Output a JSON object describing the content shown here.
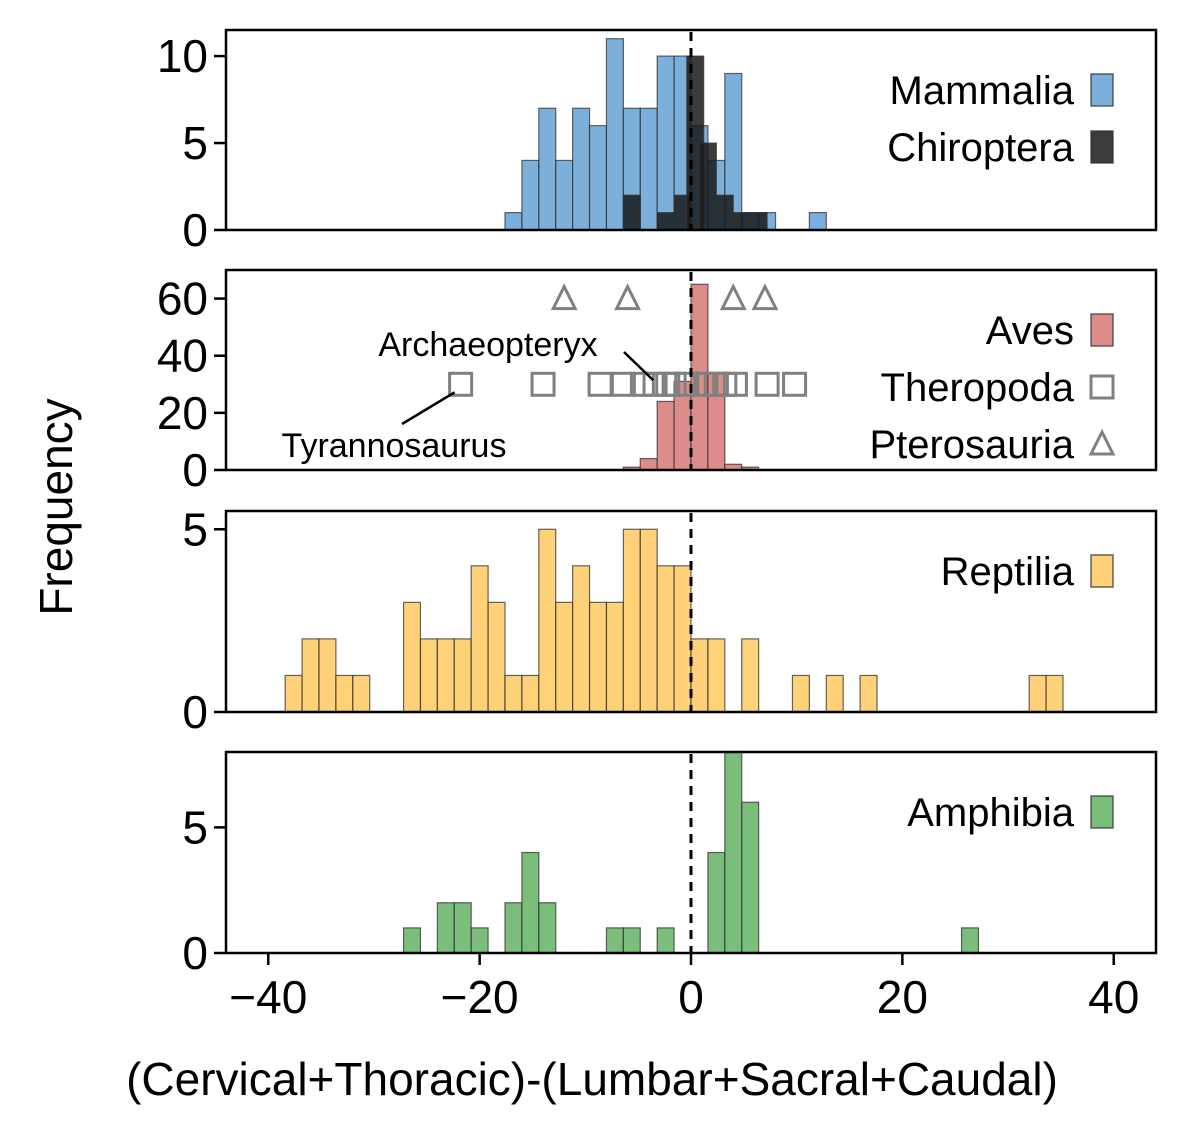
{
  "chart_data": {
    "type": "bar",
    "xlabel": "(Cervical+Thoracic)-(Lumbar+Sacral+Caudal)",
    "ylabel": "Frequency",
    "xlim": [
      -44,
      44
    ],
    "xticks": [
      -40,
      -20,
      0,
      20,
      40
    ],
    "xtick_labels": [
      "−40",
      "−20",
      "0",
      "20",
      "40"
    ],
    "bin_width": 1.6,
    "reference_line_x": 0,
    "panels": [
      {
        "id": "mammals",
        "ylim": [
          0,
          11.5
        ],
        "yticks": [
          0,
          5,
          10
        ],
        "series": [
          {
            "name": "Mammalia",
            "color": "#5b9bd0",
            "opacity": 0.8,
            "bins_left": [
              -17.6,
              -16.0,
              -14.4,
              -12.8,
              -11.2,
              -9.6,
              -8.0,
              -6.4,
              -4.8,
              -3.2,
              -1.6,
              0.0,
              1.6,
              3.2,
              4.8,
              6.4,
              9.6,
              11.2
            ],
            "values": [
              1,
              4,
              7,
              4,
              7,
              6,
              11,
              7,
              7,
              10,
              10,
              6,
              4,
              9,
              1,
              1,
              0,
              1
            ]
          },
          {
            "name": "Chiroptera",
            "color": "#1a1a1a",
            "opacity": 0.85,
            "bins_left": [
              -6.4,
              -4.8,
              -3.2,
              -1.6,
              -0.4,
              0.8,
              2.4,
              4.0,
              5.6
            ],
            "values": [
              2,
              0,
              1,
              2,
              10,
              5,
              2,
              1,
              1
            ]
          }
        ]
      },
      {
        "id": "birds",
        "ylim": [
          0,
          70
        ],
        "yticks": [
          0,
          20,
          40,
          60
        ],
        "series": [
          {
            "name": "Aves",
            "color": "#d98080",
            "opacity": 0.9,
            "bins_left": [
              -6.4,
              -4.8,
              -3.2,
              -1.6,
              0.0,
              1.6,
              3.2,
              4.8
            ],
            "values": [
              1,
              4,
              24,
              31,
              65,
              34,
              2,
              1
            ]
          },
          {
            "name": "Theropoda",
            "marker": "square",
            "color": "#808080",
            "x": [
              -21.8,
              -14,
              -8.6,
              -6.4,
              -4.6,
              -3.4,
              -2.2,
              -1.6,
              -0.4,
              1.4,
              2.4,
              3.2,
              4.2,
              7.2,
              9.8
            ],
            "y": [
              30,
              30,
              30,
              30,
              30,
              30,
              30,
              30,
              30,
              30,
              30,
              30,
              30,
              30,
              30
            ]
          },
          {
            "name": "Pterosauria",
            "marker": "triangle",
            "color": "#808080",
            "x": [
              -12,
              -6,
              4,
              7
            ],
            "y": [
              60,
              60,
              60,
              60
            ]
          }
        ],
        "annotations": [
          {
            "text": "Archaeopteryx",
            "point": [
              -3,
              30
            ]
          },
          {
            "text": "Tyrannosaurus",
            "point": [
              -21.8,
              30
            ]
          }
        ]
      },
      {
        "id": "reptiles",
        "ylim": [
          0,
          5.5
        ],
        "yticks": [
          0,
          5
        ],
        "series": [
          {
            "name": "Reptilia",
            "color": "#ffc658",
            "opacity": 0.8,
            "bins_left": [
              -38.4,
              -36.8,
              -35.2,
              -33.6,
              -32.0,
              -27.2,
              -25.6,
              -24.0,
              -22.4,
              -20.8,
              -19.2,
              -17.6,
              -16.0,
              -14.4,
              -12.8,
              -11.2,
              -9.6,
              -8.0,
              -6.4,
              -4.8,
              -3.2,
              -1.6,
              0.0,
              1.6,
              4.8,
              9.6,
              12.8,
              16.0,
              32.0,
              33.6
            ],
            "values": [
              1,
              2,
              2,
              1,
              1,
              3,
              2,
              2,
              2,
              4,
              3,
              1,
              1,
              5,
              3,
              4,
              3,
              3,
              5,
              5,
              4,
              4,
              2,
              2,
              2,
              1,
              1,
              1,
              1,
              1
            ]
          }
        ]
      },
      {
        "id": "amphibians",
        "ylim": [
          0,
          8
        ],
        "yticks": [
          0,
          5
        ],
        "series": [
          {
            "name": "Amphibia",
            "color": "#5aad5a",
            "opacity": 0.8,
            "bins_left": [
              -27.2,
              -24.0,
              -22.4,
              -20.8,
              -17.6,
              -16.0,
              -14.4,
              -8.0,
              -6.4,
              -3.2,
              1.6,
              3.2,
              4.8,
              25.6
            ],
            "values": [
              1,
              2,
              2,
              1,
              2,
              4,
              2,
              1,
              1,
              1,
              4,
              8,
              6,
              1
            ]
          }
        ]
      }
    ]
  }
}
